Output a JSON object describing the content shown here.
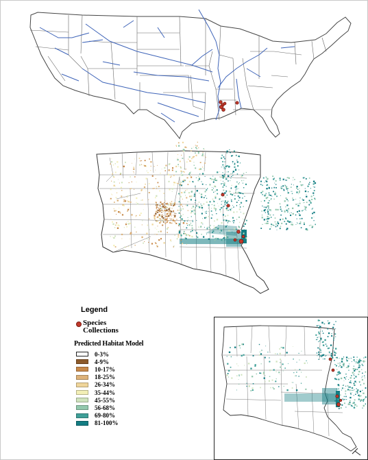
{
  "legend": {
    "title": "Legend",
    "collections_label": "Species\nCollections",
    "collections_color": "#c0392b",
    "model_title": "Predicted Habitat Model",
    "classes": [
      {
        "label": "0-3%",
        "color": "#ffffff"
      },
      {
        "label": "4-9%",
        "color": "#8c5a2b"
      },
      {
        "label": "10-17%",
        "color": "#c8894a"
      },
      {
        "label": "18-25%",
        "color": "#ddb27a"
      },
      {
        "label": "26-34%",
        "color": "#efd59a"
      },
      {
        "label": "35-44%",
        "color": "#f3efb6"
      },
      {
        "label": "45-55%",
        "color": "#cfe3bd"
      },
      {
        "label": "56-68%",
        "color": "#93c8ad"
      },
      {
        "label": "69-80%",
        "color": "#3f9f98"
      },
      {
        "label": "81-100%",
        "color": "#137d83"
      }
    ]
  },
  "colors": {
    "rivers": "#3d63b8",
    "borders": "#555555",
    "collections": "#c0392b"
  }
}
